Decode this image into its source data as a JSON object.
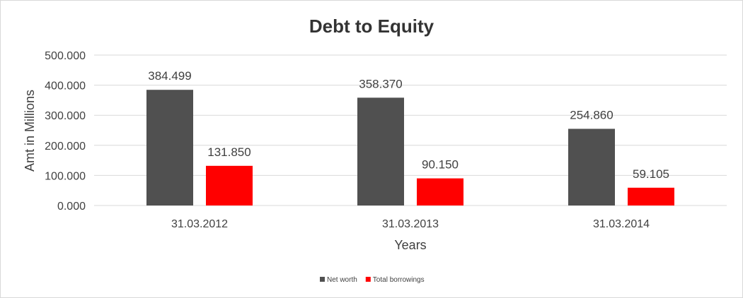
{
  "chart_data": {
    "type": "bar",
    "title": "Debt to Equity",
    "xlabel": "Years",
    "ylabel": "Amt in Millions",
    "categories": [
      "31.03.2012",
      "31.03.2013",
      "31.03.2014"
    ],
    "series": [
      {
        "name": "Net worth",
        "values": [
          384.499,
          358.37,
          254.86
        ],
        "labels": [
          "384.499",
          "358.370",
          "254.860"
        ],
        "color": "#505050"
      },
      {
        "name": "Total borrowings",
        "values": [
          131.85,
          90.15,
          59.105
        ],
        "labels": [
          "131.850",
          "90.150",
          "59.105"
        ],
        "color": "#ff0000"
      }
    ],
    "ylim": [
      0,
      500
    ],
    "yticks": [
      "0.000",
      "100.000",
      "200.000",
      "300.000",
      "400.000",
      "500.000"
    ],
    "grid": true,
    "legend_position": "bottom"
  }
}
